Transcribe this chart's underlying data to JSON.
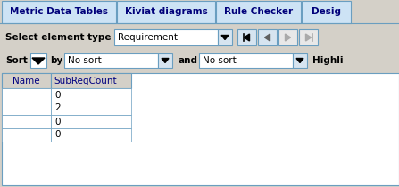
{
  "tabs": [
    "Metric Data Tables",
    "Kiviat diagrams",
    "Rule Checker",
    "Desig"
  ],
  "active_tab": 0,
  "select_label": "Select element type",
  "dropdown_value": "Requirement",
  "sort_label": "Sort",
  "by_label": "by",
  "sort1_value": "No sort",
  "and_label": "and",
  "sort2_value": "No sort",
  "highlight_label": "Highli",
  "col1_header": "Name",
  "col2_header": "SubReqCount",
  "rows": [
    [
      "",
      "0"
    ],
    [
      "",
      "2"
    ],
    [
      "",
      "0"
    ],
    [
      "",
      "0"
    ]
  ],
  "bg_color": "#d6e4f0",
  "tab_active_bg": "#cde3f5",
  "tab_inactive_bg": "#cde3f5",
  "table_bg": "#ffffff",
  "border_color": "#6a9ec0",
  "header_text_color": "#000080",
  "text_color": "#000000",
  "dropdown_bg": "#ffffff",
  "button_bg": "#d6e4f0",
  "tab_border": "#6a9ec0",
  "tab_text_color": "#00007a",
  "outer_bg": "#d4d0c8"
}
